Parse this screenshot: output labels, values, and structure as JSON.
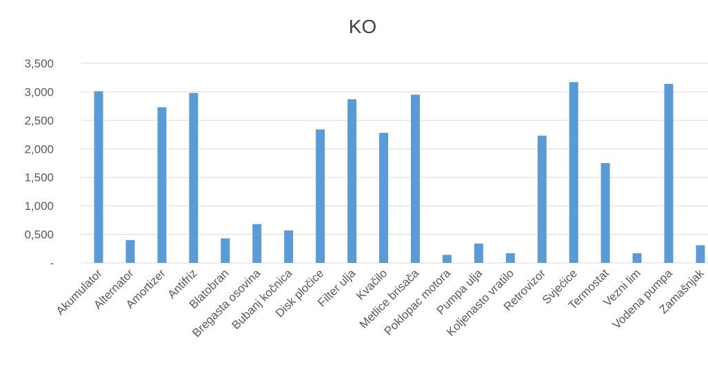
{
  "chart_data": {
    "type": "bar",
    "title": "KO",
    "xlabel": "",
    "ylabel": "",
    "ylim": [
      0,
      3.5
    ],
    "yticks": [
      0,
      0.5,
      1,
      1.5,
      2,
      2.5,
      3,
      3.5
    ],
    "ytick_labels": [
      "-",
      "0,500",
      "1,000",
      "1,500",
      "2,000",
      "2,500",
      "3,000",
      "3,500"
    ],
    "grid": true,
    "legend": "none",
    "bar_color": "#5b9bd5",
    "categories": [
      "Akumulator",
      "Alternator",
      "Amortizer",
      "Antifriz",
      "Blatobran",
      "Bregasta osovina",
      "Bubanj kočnica",
      "Disk pločice",
      "Filter ulja",
      "Kvačilo",
      "Metlice brisača",
      "Poklopac motora",
      "Pumpa ulja",
      "Koljenasto vratilo",
      "Retrovizor",
      "Svjećice",
      "Termostat",
      "Vezni lim",
      "Vodena pumpa",
      "Zamašnjak"
    ],
    "values": [
      3.01,
      0.4,
      2.73,
      2.98,
      0.43,
      0.68,
      0.57,
      2.34,
      2.87,
      2.28,
      2.95,
      0.14,
      0.34,
      0.17,
      2.23,
      3.17,
      1.75,
      0.17,
      3.14,
      0.31
    ]
  }
}
